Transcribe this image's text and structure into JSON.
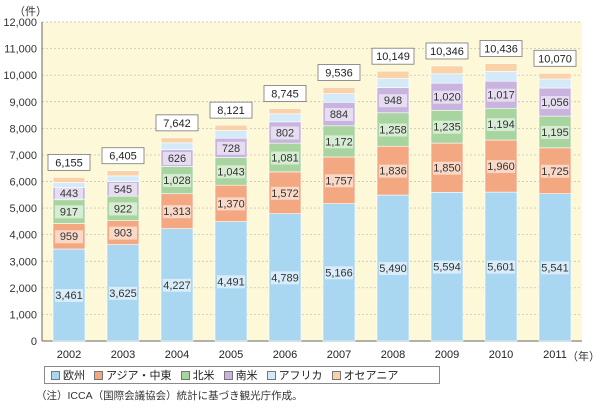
{
  "chart_data": {
    "type": "bar",
    "stacked": true,
    "categories": [
      "2002",
      "2003",
      "2004",
      "2005",
      "2006",
      "2007",
      "2008",
      "2009",
      "2010",
      "2011"
    ],
    "series": [
      {
        "name": "欧州",
        "color": "#a9d7f2",
        "values": [
          3461,
          3625,
          4227,
          4491,
          4789,
          5166,
          5490,
          5594,
          5601,
          5541
        ]
      },
      {
        "name": "アジア・中東",
        "color": "#f4a882",
        "values": [
          959,
          903,
          1313,
          1370,
          1572,
          1757,
          1836,
          1850,
          1960,
          1725
        ]
      },
      {
        "name": "北米",
        "color": "#a8d4a0",
        "values": [
          917,
          922,
          1028,
          1043,
          1081,
          1172,
          1258,
          1235,
          1194,
          1195
        ]
      },
      {
        "name": "南米",
        "color": "#c9b3df",
        "values": [
          443,
          545,
          626,
          728,
          802,
          884,
          948,
          1020,
          1017,
          1056
        ]
      },
      {
        "name": "アフリカ",
        "color": "#d4eaf8",
        "values": [
          183,
          215,
          262,
          285,
          301,
          327,
          343,
          352,
          368,
          339
        ]
      },
      {
        "name": "オセアニア",
        "color": "#f9d2a8",
        "values": [
          192,
          195,
          186,
          204,
          200,
          230,
          274,
          295,
          296,
          214
        ]
      }
    ],
    "totals": [
      6155,
      6405,
      7642,
      8121,
      8745,
      9536,
      10149,
      10346,
      10436,
      10070
    ],
    "labeled_series": [
      "欧州",
      "アジア・中東",
      "北米",
      "南米"
    ],
    "ylim": [
      0,
      12000
    ],
    "yticks": [
      0,
      1000,
      2000,
      3000,
      4000,
      5000,
      6000,
      7000,
      8000,
      9000,
      10000,
      11000,
      12000
    ],
    "y_unit": "（件）",
    "x_unit": "（年）",
    "grid": true,
    "plot_background": "#fdf8d8",
    "legend_position": "bottom"
  },
  "note": "（注）ICCA（国際会議協会）統計に基づき観光庁作成。"
}
